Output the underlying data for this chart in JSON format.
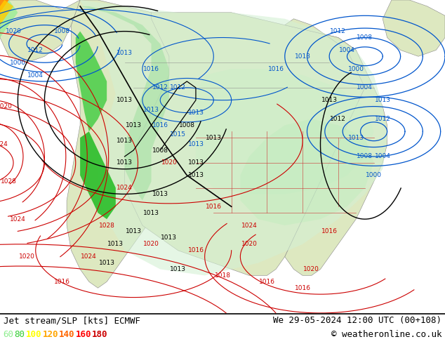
{
  "title_left": "Jet stream/SLP [kts] ECMWF",
  "title_right": "We 29-05-2024 12:00 UTC (00+108)",
  "copyright": "© weatheronline.co.uk",
  "legend_values": [
    60,
    80,
    100,
    120,
    140,
    160,
    180
  ],
  "legend_colors": [
    "#90ee90",
    "#32cd32",
    "#ffff00",
    "#ffa500",
    "#ff6600",
    "#ff0000",
    "#cc0000"
  ],
  "bottom_bg": "#ffffff",
  "fig_width": 6.34,
  "fig_height": 4.9,
  "ocean_color": "#e8eef5",
  "land_color": "#dde8c0",
  "jet_colors": {
    "60": "#c8f0c8",
    "80": "#90ee90",
    "100": "#32cd32",
    "120": "#ffff00",
    "140": "#ffa500",
    "160": "#ff4400",
    "180": "#cc0000"
  },
  "isobar_blue": "#0055cc",
  "isobar_red": "#cc0000",
  "isobar_black": "#000000",
  "border_gray": "#888888",
  "border_red": "#cc3333"
}
